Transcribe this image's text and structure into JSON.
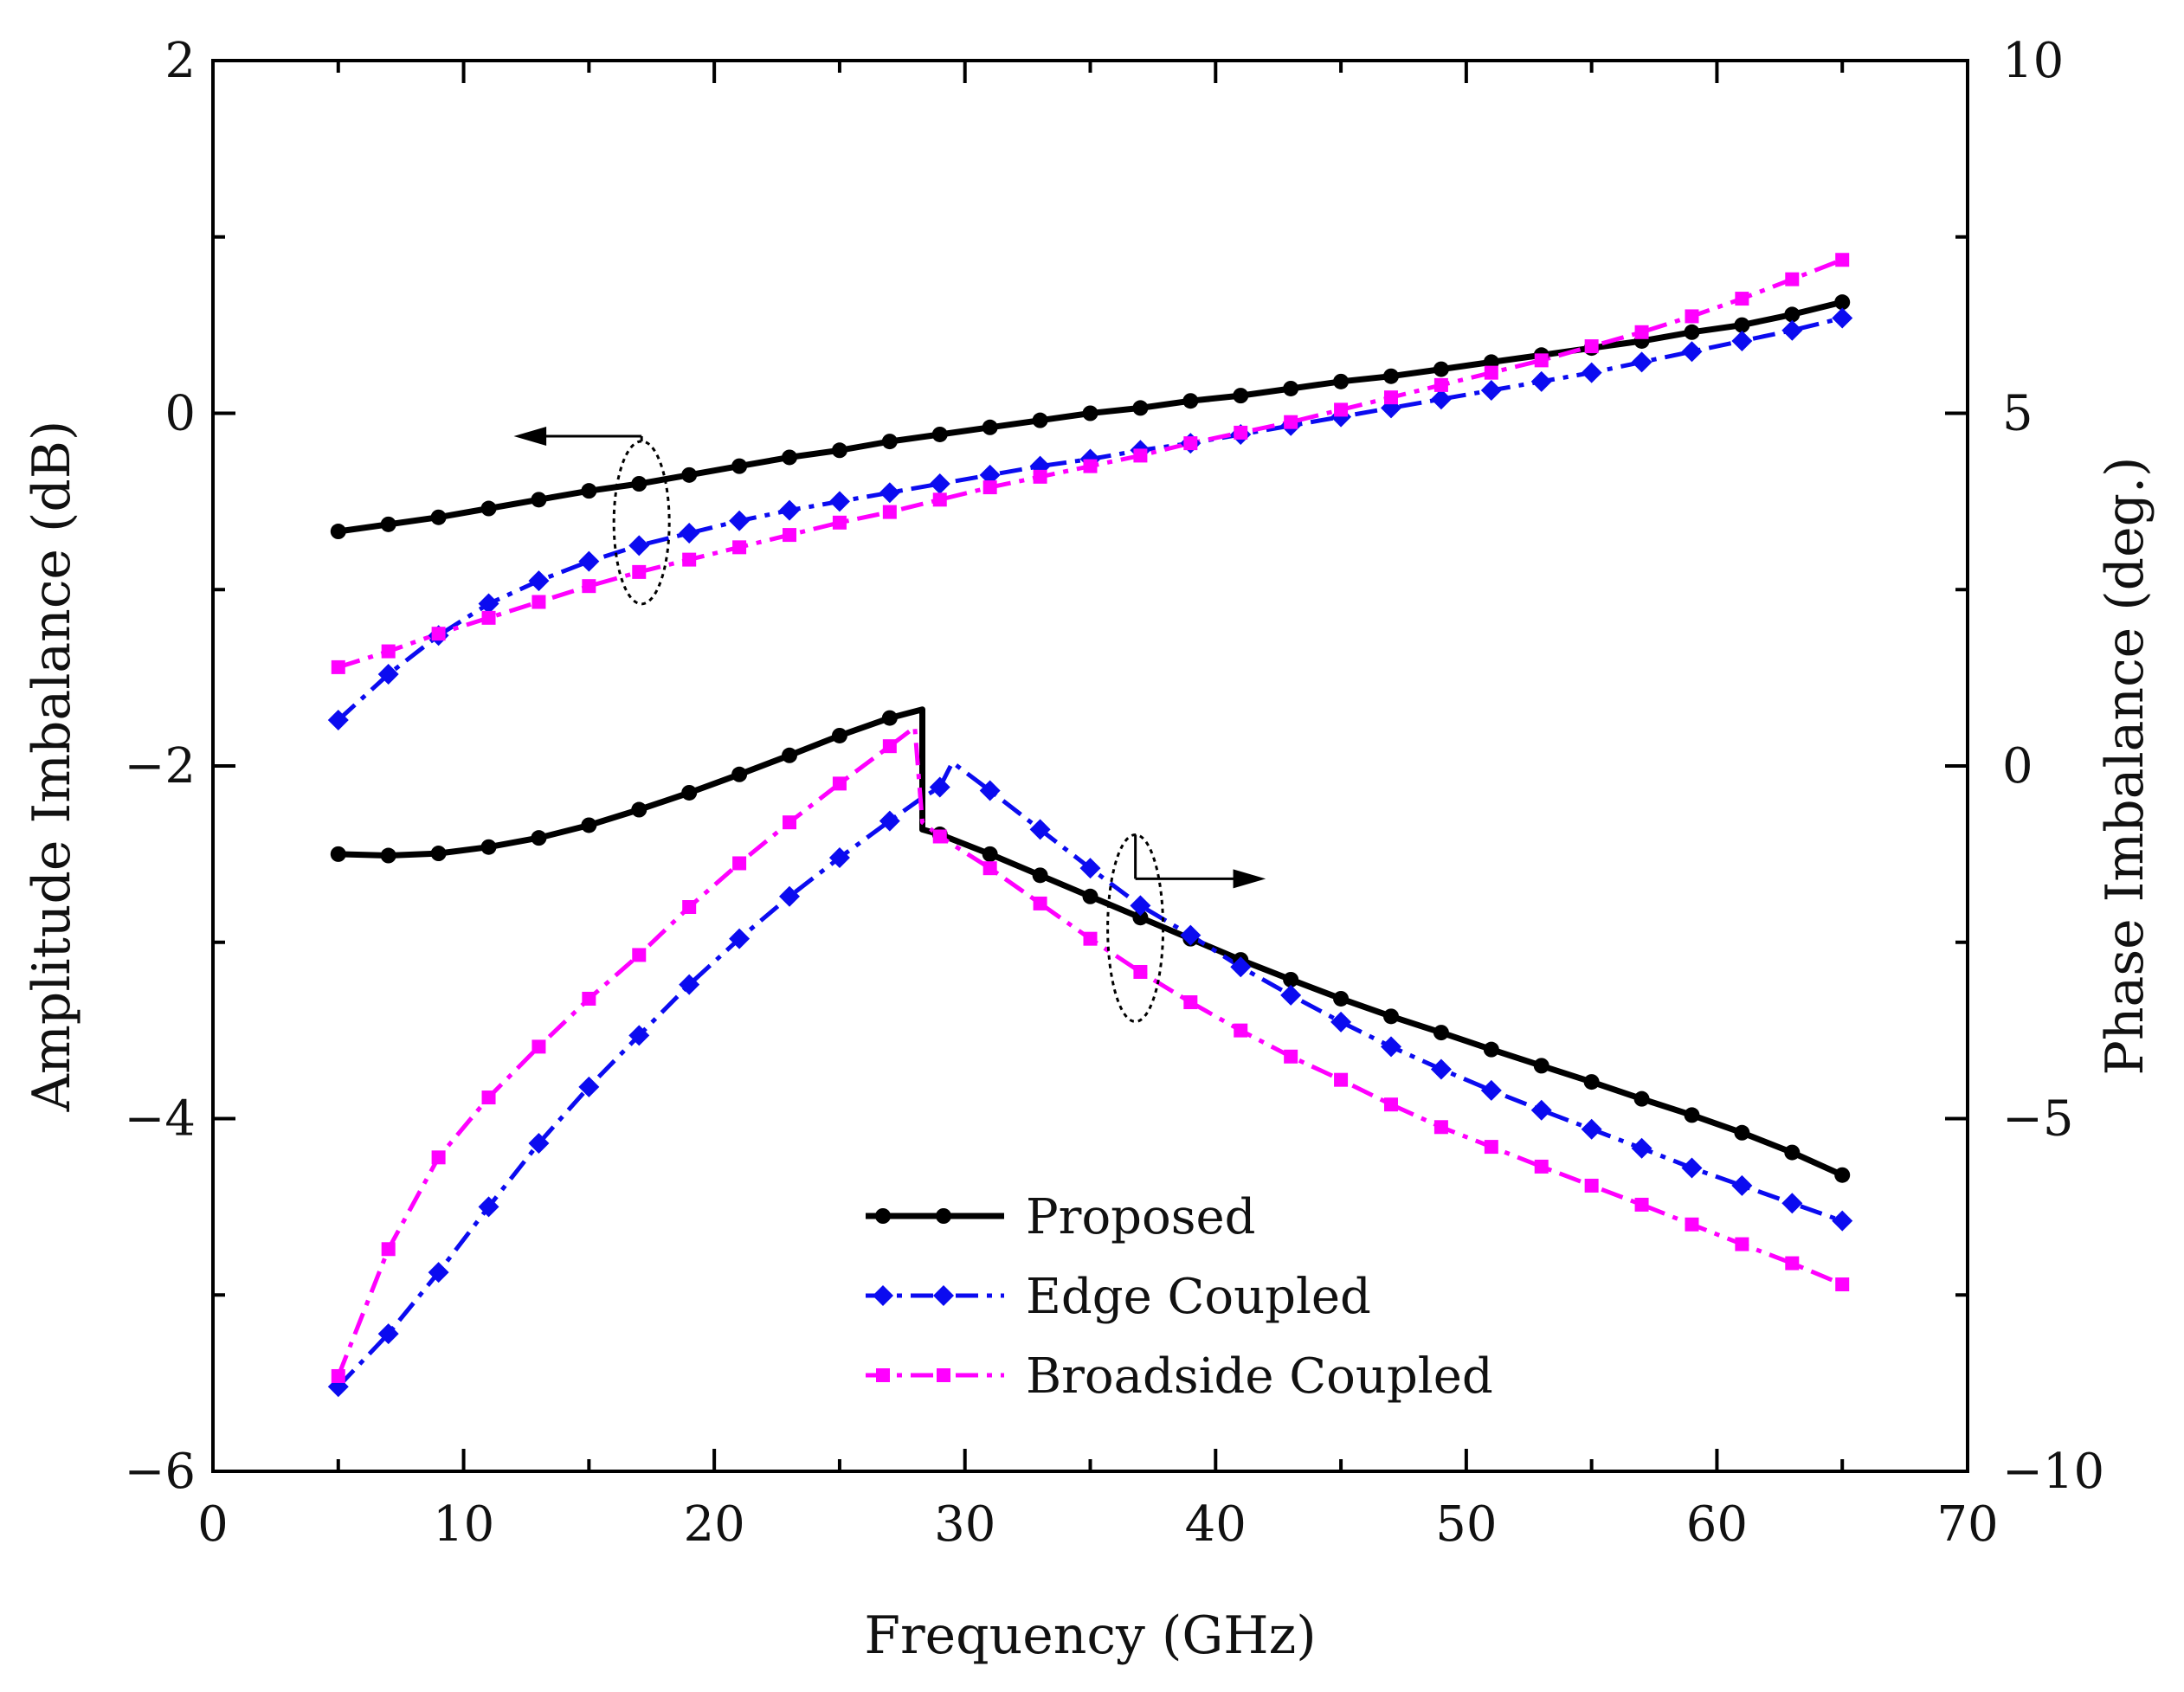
{
  "chart_data": {
    "type": "line",
    "xlabel": "Frequency (GHz)",
    "ylabel_left": "Amplitude Imbalance (dB)",
    "ylabel_right": "Phase Imbalance (deg.)",
    "xlim": [
      0,
      70
    ],
    "ylim_left": [
      -6,
      2
    ],
    "ylim_right": [
      -10,
      10
    ],
    "x_ticks": [
      "0",
      "10",
      "20",
      "30",
      "40",
      "50",
      "60",
      "70"
    ],
    "y_ticks_left": [
      "−6",
      "−4",
      "−2",
      "0",
      "2"
    ],
    "y_ticks_right": [
      "−10",
      "−5",
      "0",
      "5",
      "10"
    ],
    "grid": false,
    "legend_position": "bottom-center",
    "annotations": [
      {
        "kind": "arrow-ellipse",
        "axis": "left",
        "direction": "left",
        "label": "amplitude curves"
      },
      {
        "kind": "arrow-ellipse",
        "axis": "right",
        "direction": "right",
        "label": "phase curves"
      }
    ],
    "series": [
      {
        "name": "Proposed",
        "axis": "left",
        "color": "#000000",
        "marker": "circle",
        "dash": "solid",
        "x": [
          5,
          7,
          9,
          11,
          13,
          15,
          17,
          19,
          21,
          23,
          25,
          27,
          29,
          31,
          33,
          35,
          37,
          39,
          41,
          43,
          45,
          47,
          49,
          51,
          53,
          55,
          57,
          59,
          61,
          63,
          65
        ],
        "y": [
          -0.67,
          -0.63,
          -0.59,
          -0.54,
          -0.49,
          -0.44,
          -0.4,
          -0.35,
          -0.3,
          -0.25,
          -0.21,
          -0.16,
          -0.12,
          -0.08,
          -0.04,
          0.0,
          0.03,
          0.07,
          0.1,
          0.14,
          0.18,
          0.21,
          0.25,
          0.29,
          0.33,
          0.37,
          0.41,
          0.46,
          0.5,
          0.56,
          0.63
        ]
      },
      {
        "name": "Edge Coupled",
        "axis": "left",
        "color": "#0b0bf0",
        "marker": "diamond",
        "dash": "dash-dot",
        "x": [
          5,
          7,
          9,
          11,
          13,
          15,
          17,
          19,
          21,
          23,
          25,
          27,
          29,
          31,
          33,
          35,
          37,
          39,
          41,
          43,
          45,
          47,
          49,
          51,
          53,
          55,
          57,
          59,
          61,
          63,
          65
        ],
        "y": [
          -1.74,
          -1.48,
          -1.26,
          -1.08,
          -0.95,
          -0.84,
          -0.75,
          -0.68,
          -0.61,
          -0.55,
          -0.5,
          -0.45,
          -0.4,
          -0.35,
          -0.3,
          -0.26,
          -0.21,
          -0.17,
          -0.12,
          -0.07,
          -0.02,
          0.03,
          0.08,
          0.13,
          0.18,
          0.23,
          0.29,
          0.35,
          0.41,
          0.47,
          0.54
        ]
      },
      {
        "name": "Broadside Coupled",
        "axis": "left",
        "color": "#ff00ff",
        "marker": "square",
        "dash": "dash-dot",
        "x": [
          5,
          7,
          9,
          11,
          13,
          15,
          17,
          19,
          21,
          23,
          25,
          27,
          29,
          31,
          33,
          35,
          37,
          39,
          41,
          43,
          45,
          47,
          49,
          51,
          53,
          55,
          57,
          59,
          61,
          63,
          65
        ],
        "y": [
          -1.44,
          -1.35,
          -1.25,
          -1.16,
          -1.07,
          -0.98,
          -0.9,
          -0.83,
          -0.76,
          -0.69,
          -0.62,
          -0.56,
          -0.49,
          -0.42,
          -0.36,
          -0.3,
          -0.24,
          -0.17,
          -0.11,
          -0.05,
          0.02,
          0.09,
          0.16,
          0.23,
          0.3,
          0.38,
          0.46,
          0.55,
          0.65,
          0.76,
          0.87
        ]
      },
      {
        "name": "Proposed",
        "axis": "right",
        "color": "#000000",
        "marker": "circle",
        "dash": "solid",
        "legend": false,
        "x": [
          5,
          7,
          9,
          11,
          13,
          15,
          17,
          19,
          21,
          23,
          25,
          27,
          28.3,
          28.3,
          29,
          31,
          33,
          35,
          37,
          39,
          41,
          43,
          45,
          47,
          49,
          51,
          53,
          55,
          57,
          59,
          61,
          63,
          65
        ],
        "y": [
          -1.25,
          -1.27,
          -1.24,
          -1.15,
          -1.02,
          -0.84,
          -0.62,
          -0.38,
          -0.12,
          0.15,
          0.43,
          0.68,
          0.8,
          -0.9,
          -0.97,
          -1.25,
          -1.55,
          -1.85,
          -2.15,
          -2.45,
          -2.75,
          -3.03,
          -3.3,
          -3.55,
          -3.78,
          -4.02,
          -4.25,
          -4.48,
          -4.72,
          -4.95,
          -5.2,
          -5.48,
          -5.8
        ],
        "marker_x": [
          5,
          7,
          9,
          11,
          13,
          15,
          17,
          19,
          21,
          23,
          25,
          27,
          29,
          31,
          33,
          35,
          37,
          39,
          41,
          43,
          45,
          47,
          49,
          51,
          53,
          55,
          57,
          59,
          61,
          63,
          65
        ]
      },
      {
        "name": "Edge Coupled",
        "axis": "right",
        "color": "#0b0bf0",
        "marker": "diamond",
        "dash": "dash-dot",
        "legend": false,
        "x": [
          5,
          7,
          9,
          11,
          13,
          15,
          17,
          19,
          21,
          23,
          25,
          27,
          28.3,
          29,
          29.5,
          31,
          33,
          35,
          37,
          39,
          41,
          43,
          45,
          47,
          49,
          51,
          53,
          55,
          57,
          59,
          61,
          63,
          65
        ],
        "y": [
          -8.8,
          -8.05,
          -7.18,
          -6.25,
          -5.35,
          -4.55,
          -3.82,
          -3.1,
          -2.45,
          -1.85,
          -1.3,
          -0.78,
          -0.45,
          -0.3,
          0.05,
          -0.35,
          -0.9,
          -1.45,
          -1.98,
          -2.4,
          -2.85,
          -3.25,
          -3.63,
          -3.98,
          -4.3,
          -4.6,
          -4.88,
          -5.15,
          -5.42,
          -5.7,
          -5.95,
          -6.2,
          -6.45
        ],
        "marker_x": [
          5,
          7,
          9,
          11,
          13,
          15,
          17,
          19,
          21,
          23,
          25,
          27,
          29,
          31,
          33,
          35,
          37,
          39,
          41,
          43,
          45,
          47,
          49,
          51,
          53,
          55,
          57,
          59,
          61,
          63,
          65
        ]
      },
      {
        "name": "Broadside Coupled",
        "axis": "right",
        "color": "#ff00ff",
        "marker": "square",
        "dash": "dash-dot",
        "legend": false,
        "x": [
          5,
          7,
          9,
          11,
          13,
          15,
          17,
          19,
          21,
          23,
          25,
          27,
          28.0,
          28.3,
          29,
          31,
          33,
          35,
          37,
          39,
          41,
          43,
          45,
          47,
          49,
          51,
          53,
          55,
          57,
          59,
          61,
          63,
          65
        ],
        "y": [
          -8.65,
          -6.85,
          -5.55,
          -4.7,
          -3.98,
          -3.3,
          -2.68,
          -2.0,
          -1.38,
          -0.8,
          -0.25,
          0.28,
          0.55,
          -0.8,
          -1.0,
          -1.45,
          -1.95,
          -2.45,
          -2.92,
          -3.35,
          -3.75,
          -4.12,
          -4.45,
          -4.8,
          -5.12,
          -5.4,
          -5.68,
          -5.95,
          -6.22,
          -6.5,
          -6.78,
          -7.05,
          -7.35
        ],
        "marker_x": [
          5,
          7,
          9,
          11,
          13,
          15,
          17,
          19,
          21,
          23,
          25,
          27,
          29,
          31,
          33,
          35,
          37,
          39,
          41,
          43,
          45,
          47,
          49,
          51,
          53,
          55,
          57,
          59,
          61,
          63,
          65
        ]
      }
    ]
  }
}
